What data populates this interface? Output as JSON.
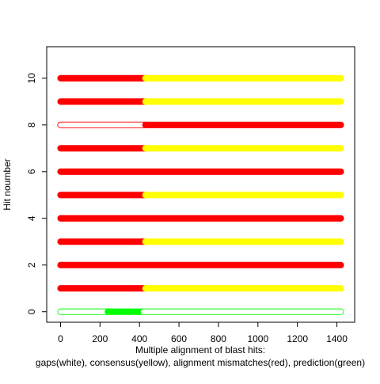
{
  "chart_data": {
    "type": "scatter",
    "xlabel": "Multiple alignment of blast hits:",
    "xlabel_line2": "gaps(white), consensus(yellow), alignment mismatches(red), prediction(green)",
    "ylabel": "Hit noumber",
    "xlim": [
      -70,
      1490
    ],
    "ylim": [
      -0.45,
      11.35
    ],
    "x_ticks": [
      0,
      200,
      400,
      600,
      800,
      1000,
      1200,
      1400
    ],
    "y_ticks": [
      0,
      2,
      4,
      6,
      8,
      10
    ],
    "colors": {
      "gap": "#ffffff",
      "consensus": "#ffff00",
      "mismatch": "#ff0000",
      "prediction": "#00ff00",
      "axis": "#000000"
    },
    "series": [
      {
        "hit": 0,
        "segments": [
          [
            0,
            240,
            "gap"
          ],
          [
            240,
            420,
            "prediction"
          ],
          [
            420,
            1420,
            "gap"
          ]
        ]
      },
      {
        "hit": 1,
        "segments": [
          [
            0,
            430,
            "mismatch"
          ],
          [
            430,
            1420,
            "consensus"
          ]
        ]
      },
      {
        "hit": 2,
        "segments": [
          [
            0,
            1420,
            "mismatch"
          ]
        ]
      },
      {
        "hit": 3,
        "segments": [
          [
            0,
            430,
            "mismatch"
          ],
          [
            430,
            1420,
            "consensus"
          ]
        ]
      },
      {
        "hit": 4,
        "segments": [
          [
            0,
            1420,
            "mismatch"
          ]
        ]
      },
      {
        "hit": 5,
        "segments": [
          [
            0,
            430,
            "mismatch"
          ],
          [
            430,
            1420,
            "consensus"
          ]
        ]
      },
      {
        "hit": 6,
        "segments": [
          [
            0,
            1420,
            "mismatch"
          ]
        ]
      },
      {
        "hit": 7,
        "segments": [
          [
            0,
            430,
            "mismatch"
          ],
          [
            430,
            1420,
            "consensus"
          ]
        ]
      },
      {
        "hit": 8,
        "segments": [
          [
            0,
            430,
            "gap"
          ],
          [
            430,
            1420,
            "mismatch"
          ]
        ]
      },
      {
        "hit": 9,
        "segments": [
          [
            0,
            430,
            "mismatch"
          ],
          [
            430,
            1420,
            "consensus"
          ]
        ]
      },
      {
        "hit": 10,
        "segments": [
          [
            0,
            430,
            "mismatch"
          ],
          [
            430,
            1420,
            "consensus"
          ]
        ]
      }
    ]
  }
}
